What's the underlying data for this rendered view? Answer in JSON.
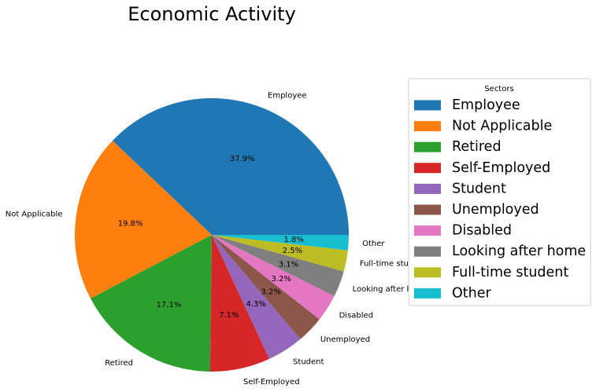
{
  "chart_data": {
    "type": "pie",
    "title": "Economic Activity",
    "legend_title": "Sectors",
    "legend_position": "right",
    "categories": [
      "Employee",
      "Not Applicable",
      "Retired",
      "Self-Employed",
      "Student",
      "Unemployed",
      "Disabled",
      "Looking after home",
      "Full-time student",
      "Other"
    ],
    "values": [
      37.9,
      19.8,
      17.1,
      7.1,
      4.3,
      3.2,
      3.2,
      3.1,
      2.5,
      1.8
    ],
    "percent_labels": [
      "37.9%",
      "19.8%",
      "17.1%",
      "7.1%",
      "4.3%",
      "3.2%",
      "3.2%",
      "3.1%",
      "2.5%",
      "1.8%"
    ],
    "colors": [
      "#1f77b4",
      "#ff7f0e",
      "#2ca02c",
      "#d62728",
      "#9467bd",
      "#8c564b",
      "#e377c2",
      "#7f7f7f",
      "#bcbd22",
      "#17becf"
    ],
    "start_angle_deg": 0,
    "direction": "counterclockwise"
  }
}
